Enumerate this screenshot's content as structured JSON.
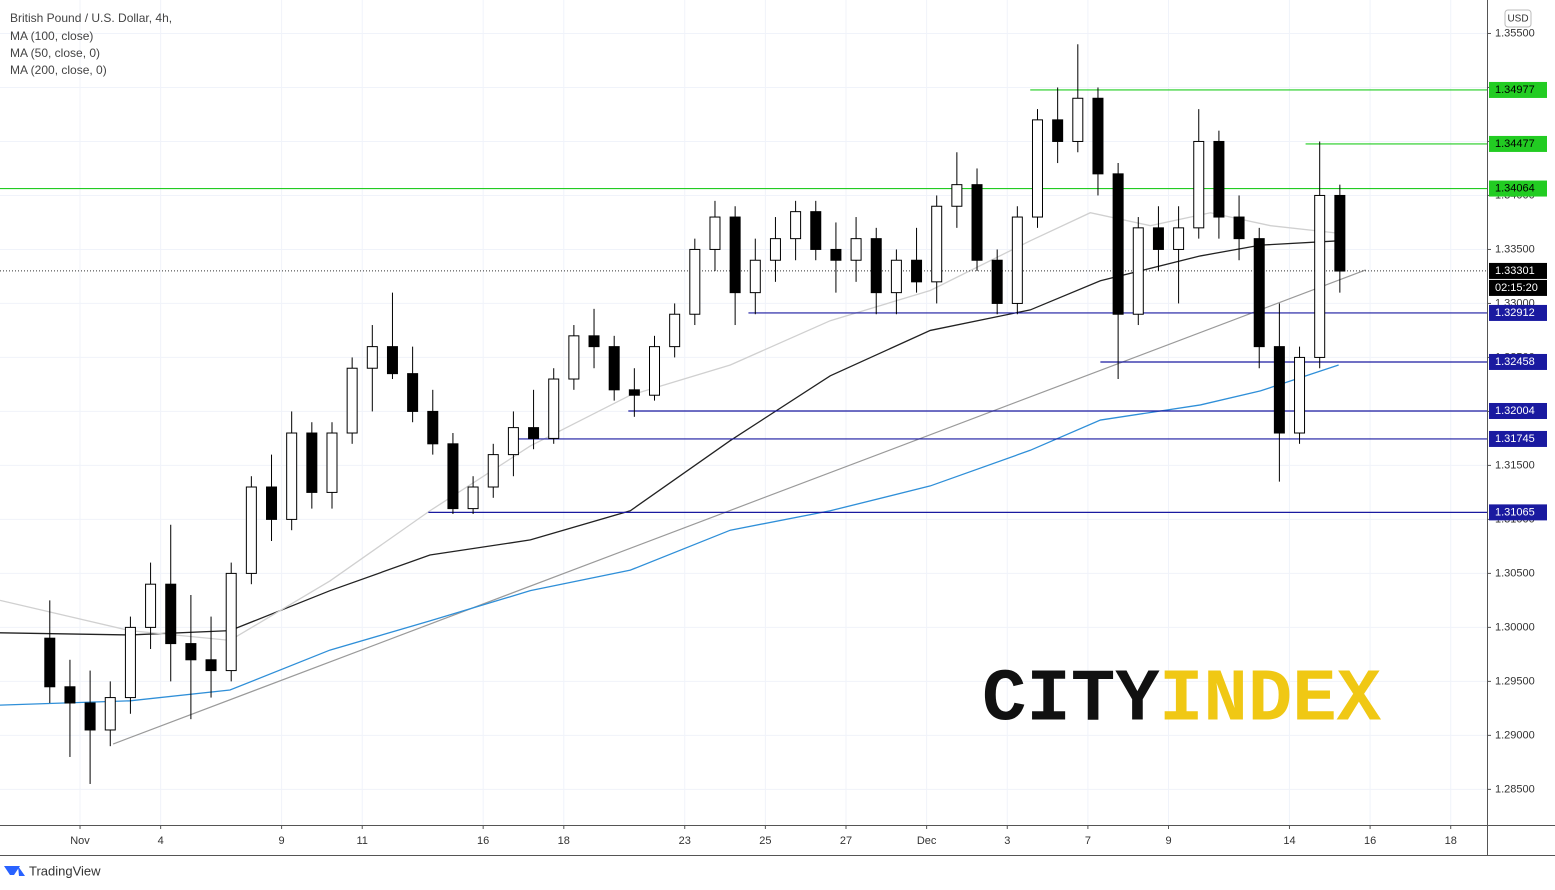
{
  "chart_data": {
    "type": "candlestick",
    "title": "British Pound / U.S. Dollar, 4h,",
    "currency": "USD",
    "branding": "TradingView",
    "watermark": [
      "CITY",
      "INDEX"
    ],
    "up_color": "#ffffff",
    "down_color": "#000000",
    "grid": true,
    "xlim": [
      -1.985,
      34.9
    ],
    "ylim": [
      1.2817,
      1.3581
    ],
    "xticks": [
      {
        "value": 0,
        "label": "Nov"
      },
      {
        "value": 2,
        "label": "4"
      },
      {
        "value": 5,
        "label": "9"
      },
      {
        "value": 7,
        "label": "11"
      },
      {
        "value": 10,
        "label": "16"
      },
      {
        "value": 12,
        "label": "18"
      },
      {
        "value": 15,
        "label": "23"
      },
      {
        "value": 17,
        "label": "25"
      },
      {
        "value": 19,
        "label": "27"
      },
      {
        "value": 21,
        "label": "Dec"
      },
      {
        "value": 23,
        "label": "3"
      },
      {
        "value": 25,
        "label": "7"
      },
      {
        "value": 27,
        "label": "9"
      },
      {
        "value": 30,
        "label": "14"
      },
      {
        "value": 32,
        "label": "16"
      },
      {
        "value": 34,
        "label": "18"
      }
    ],
    "yticks": [
      {
        "value": 1.355,
        "label": "1.35500"
      },
      {
        "value": 1.35,
        "label": "1.35000"
      },
      {
        "value": 1.345,
        "label": "1.34500"
      },
      {
        "value": 1.34,
        "label": "1.34000"
      },
      {
        "value": 1.335,
        "label": "1.33500"
      },
      {
        "value": 1.33,
        "label": "1.33000"
      },
      {
        "value": 1.325,
        "label": "1.32500"
      },
      {
        "value": 1.32,
        "label": "1.32000"
      },
      {
        "value": 1.315,
        "label": "1.31500"
      },
      {
        "value": 1.31,
        "label": "1.31000"
      },
      {
        "value": 1.305,
        "label": "1.30500"
      },
      {
        "value": 1.3,
        "label": "1.30000"
      },
      {
        "value": 1.295,
        "label": "1.29500"
      },
      {
        "value": 1.29,
        "label": "1.29000"
      },
      {
        "value": 1.285,
        "label": "1.28500"
      }
    ],
    "x": [
      -0.75,
      -0.25,
      0.25,
      0.75,
      1.25,
      1.75,
      2.25,
      2.75,
      3.25,
      3.75,
      4.25,
      4.75,
      5.25,
      5.75,
      6.25,
      6.75,
      7.25,
      7.75,
      8.25,
      8.75,
      9.25,
      9.75,
      10.25,
      10.75,
      11.25,
      11.75,
      12.25,
      12.75,
      13.25,
      13.75,
      14.25,
      14.75,
      15.25,
      15.75,
      16.25,
      16.75,
      17.25,
      17.75,
      18.25,
      18.75,
      19.25,
      19.75,
      20.25,
      20.75,
      21.25,
      21.75,
      22.25,
      22.75,
      23.25,
      23.75,
      24.25,
      24.75,
      25.25,
      25.75,
      26.25,
      26.75,
      27.25,
      27.75,
      28.25,
      28.75,
      29.25,
      29.75,
      30.25,
      30.75,
      31.25
    ],
    "open": [
      1.299,
      1.2945,
      1.293,
      1.2905,
      1.2935,
      1.3,
      1.304,
      1.2985,
      1.297,
      1.296,
      1.305,
      1.313,
      1.31,
      1.318,
      1.3125,
      1.318,
      1.324,
      1.326,
      1.3235,
      1.32,
      1.317,
      1.311,
      1.313,
      1.316,
      1.3185,
      1.3175,
      1.323,
      1.327,
      1.326,
      1.322,
      1.3215,
      1.326,
      1.329,
      1.335,
      1.338,
      1.331,
      1.334,
      1.336,
      1.3385,
      1.335,
      1.334,
      1.336,
      1.331,
      1.334,
      1.332,
      1.339,
      1.341,
      1.334,
      1.33,
      1.338,
      1.347,
      1.345,
      1.349,
      1.342,
      1.329,
      1.337,
      1.335,
      1.337,
      1.345,
      1.338,
      1.336,
      1.326,
      1.318,
      1.325,
      1.34
    ],
    "high": [
      1.3025,
      1.297,
      1.296,
      1.295,
      1.301,
      1.306,
      1.3095,
      1.303,
      1.301,
      1.306,
      1.314,
      1.316,
      1.32,
      1.319,
      1.319,
      1.325,
      1.328,
      1.331,
      1.326,
      1.322,
      1.318,
      1.314,
      1.317,
      1.32,
      1.322,
      1.324,
      1.328,
      1.3295,
      1.327,
      1.324,
      1.327,
      1.33,
      1.336,
      1.3395,
      1.339,
      1.336,
      1.338,
      1.3395,
      1.3395,
      1.3375,
      1.338,
      1.337,
      1.335,
      1.337,
      1.34,
      1.344,
      1.3425,
      1.335,
      1.339,
      1.348,
      1.35,
      1.354,
      1.35,
      1.343,
      1.338,
      1.339,
      1.339,
      1.348,
      1.346,
      1.34,
      1.337,
      1.33,
      1.326,
      1.345,
      1.341
    ],
    "low": [
      1.293,
      1.288,
      1.2855,
      1.289,
      1.292,
      1.298,
      1.295,
      1.2915,
      1.2935,
      1.295,
      1.304,
      1.308,
      1.309,
      1.311,
      1.311,
      1.317,
      1.32,
      1.323,
      1.319,
      1.316,
      1.3105,
      1.3105,
      1.312,
      1.314,
      1.3165,
      1.317,
      1.322,
      1.324,
      1.321,
      1.3195,
      1.321,
      1.325,
      1.328,
      1.333,
      1.328,
      1.329,
      1.332,
      1.334,
      1.334,
      1.331,
      1.332,
      1.329,
      1.329,
      1.331,
      1.33,
      1.337,
      1.333,
      1.329,
      1.329,
      1.337,
      1.343,
      1.344,
      1.34,
      1.323,
      1.328,
      1.333,
      1.33,
      1.336,
      1.336,
      1.334,
      1.324,
      1.3135,
      1.317,
      1.324,
      1.331
    ],
    "close": [
      1.2945,
      1.293,
      1.2905,
      1.2935,
      1.3,
      1.304,
      1.2985,
      1.297,
      1.296,
      1.305,
      1.313,
      1.31,
      1.318,
      1.3125,
      1.318,
      1.324,
      1.326,
      1.3235,
      1.32,
      1.317,
      1.311,
      1.313,
      1.316,
      1.3185,
      1.3175,
      1.323,
      1.327,
      1.326,
      1.322,
      1.3215,
      1.326,
      1.329,
      1.335,
      1.338,
      1.331,
      1.334,
      1.336,
      1.3385,
      1.335,
      1.334,
      1.336,
      1.331,
      1.334,
      1.332,
      1.339,
      1.341,
      1.334,
      1.33,
      1.338,
      1.347,
      1.345,
      1.349,
      1.342,
      1.329,
      1.337,
      1.335,
      1.337,
      1.345,
      1.338,
      1.336,
      1.326,
      1.318,
      1.325,
      1.34,
      1.333
    ],
    "moving_averages": [
      {
        "name": "MA (100, close)",
        "color": "#222222",
        "x": [
          -1.985,
          1.24,
          3.72,
          6.2,
          8.68,
          11.17,
          13.65,
          16.13,
          18.61,
          21.09,
          23.57,
          25.31,
          27.79,
          29.28,
          31.22
        ],
        "values": [
          1.2995,
          1.2993,
          1.2997,
          1.3034,
          1.3067,
          1.3081,
          1.3108,
          1.3173,
          1.3233,
          1.3275,
          1.3294,
          1.3321,
          1.3344,
          1.3354,
          1.3358
        ]
      },
      {
        "name": "MA (50, close, 0)",
        "color": "#d0d0d0",
        "x": [
          -1.985,
          1.24,
          3.72,
          6.2,
          8.68,
          11.17,
          13.65,
          16.13,
          18.61,
          21.09,
          23.57,
          25.06,
          26.55,
          28.04,
          29.53,
          31.22
        ],
        "values": [
          1.3025,
          1.2997,
          1.2988,
          1.3043,
          1.3108,
          1.3168,
          1.3215,
          1.3243,
          1.3284,
          1.3312,
          1.3358,
          1.3384,
          1.3372,
          1.3384,
          1.3372,
          1.3365
        ]
      },
      {
        "name": "MA (200, close, 0)",
        "color": "#2f8fd8",
        "x": [
          -1.985,
          1.24,
          3.72,
          6.2,
          8.68,
          11.17,
          13.65,
          16.13,
          18.61,
          21.09,
          23.57,
          25.31,
          27.79,
          29.28,
          31.22
        ],
        "values": [
          1.2928,
          1.2932,
          1.2942,
          1.2979,
          1.3006,
          1.3034,
          1.3053,
          1.309,
          1.3108,
          1.3131,
          1.3164,
          1.3192,
          1.3206,
          1.3219,
          1.3243
        ]
      }
    ],
    "trendline": {
      "color": "#9a9a9a",
      "x": [
        0.82,
        31.89
      ],
      "values": [
        1.2892,
        1.3331
      ]
    },
    "levels": [
      {
        "value": 1.34977,
        "color": "#22cc22",
        "from": 23.57
      },
      {
        "value": 1.34477,
        "color": "#22cc22",
        "from": 30.4
      },
      {
        "value": 1.34064,
        "color": "#22cc22",
        "from": -1.985
      },
      {
        "value": 1.32912,
        "color": "#1a1aa0",
        "from": 16.58
      },
      {
        "value": 1.32458,
        "color": "#1a1aa0",
        "from": 25.31
      },
      {
        "value": 1.32004,
        "color": "#1a1aa0",
        "from": 13.6
      },
      {
        "value": 1.31745,
        "color": "#1a1aa0",
        "from": 10.67
      },
      {
        "value": 1.31065,
        "color": "#1a1aa0",
        "from": 8.64
      }
    ],
    "last_price": {
      "value": 1.33301,
      "countdown": "02:15:20"
    }
  }
}
